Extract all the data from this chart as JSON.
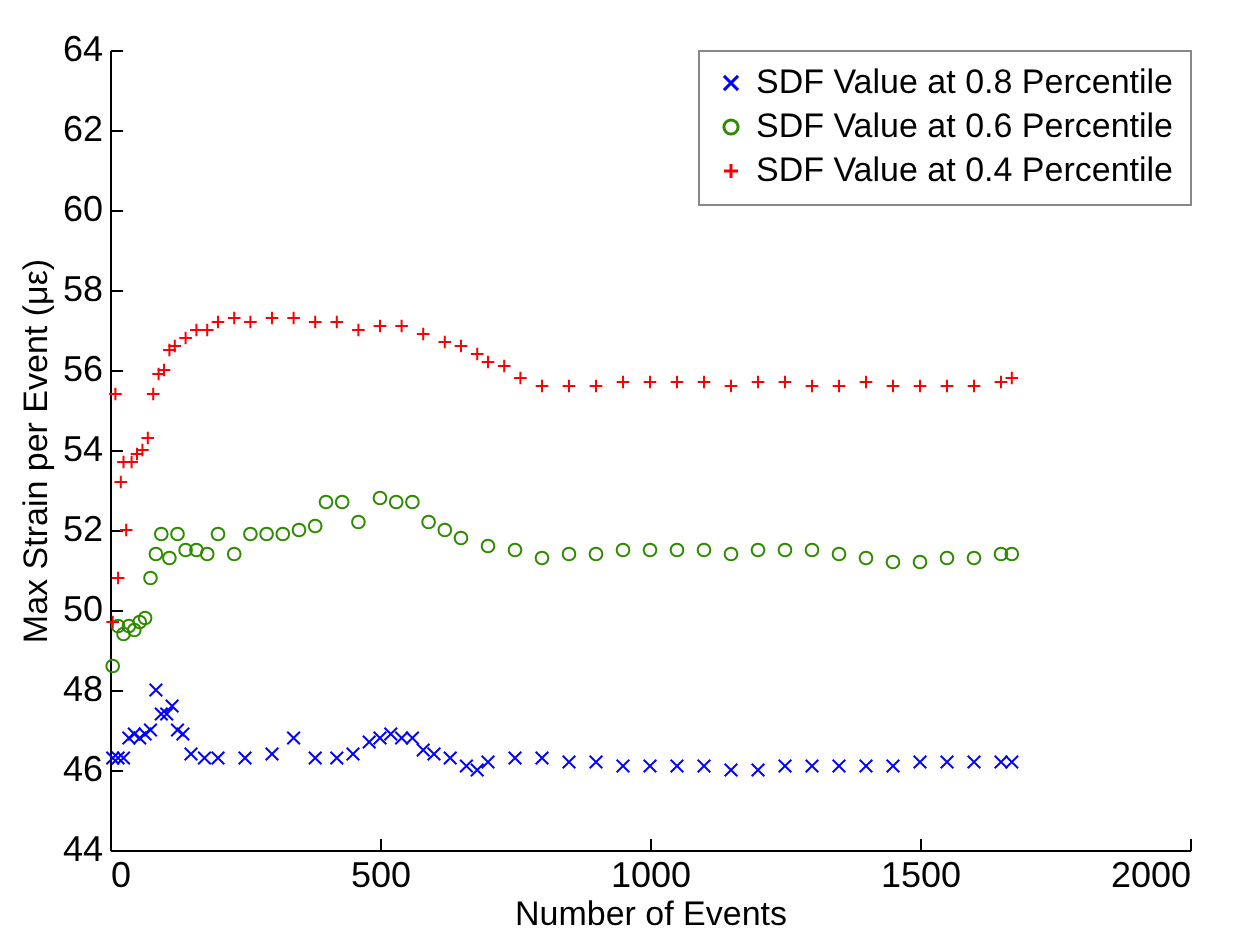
{
  "chart_data": {
    "type": "scatter",
    "xlabel": "Number of Events",
    "ylabel": "Max Strain per Event (με)",
    "xlim": [
      0,
      2000
    ],
    "xticks": [
      0,
      500,
      1000,
      1500,
      2000
    ],
    "ylim": [
      44,
      64
    ],
    "yticks": [
      44,
      46,
      48,
      50,
      52,
      54,
      56,
      58,
      60,
      62,
      64
    ],
    "grid": false,
    "legend": "top right",
    "series": [
      {
        "name": "SDF Value at 0.8 Percentile",
        "color": "#0000ff",
        "marker": "x",
        "x": [
          5,
          15,
          25,
          35,
          45,
          55,
          65,
          75,
          85,
          95,
          105,
          115,
          125,
          135,
          150,
          175,
          200,
          250,
          300,
          340,
          380,
          420,
          450,
          480,
          500,
          520,
          540,
          560,
          580,
          600,
          630,
          660,
          680,
          700,
          750,
          800,
          850,
          900,
          950,
          1000,
          1050,
          1100,
          1150,
          1200,
          1250,
          1300,
          1350,
          1400,
          1450,
          1500,
          1550,
          1600,
          1650,
          1670
        ],
        "values": [
          46.3,
          46.3,
          46.3,
          46.8,
          46.9,
          46.8,
          46.9,
          47.0,
          48.0,
          47.4,
          47.4,
          47.6,
          47.0,
          46.9,
          46.4,
          46.3,
          46.3,
          46.3,
          46.4,
          46.8,
          46.3,
          46.3,
          46.4,
          46.7,
          46.8,
          46.9,
          46.8,
          46.8,
          46.5,
          46.4,
          46.3,
          46.1,
          46.0,
          46.2,
          46.3,
          46.3,
          46.2,
          46.2,
          46.1,
          46.1,
          46.1,
          46.1,
          46.0,
          46.0,
          46.1,
          46.1,
          46.1,
          46.1,
          46.1,
          46.2,
          46.2,
          46.2,
          46.2,
          46.2
        ]
      },
      {
        "name": "SDF Value at 0.6 Percentile",
        "color": "#2e8b00",
        "marker": "circle",
        "x": [
          5,
          15,
          25,
          35,
          45,
          55,
          65,
          75,
          85,
          95,
          110,
          125,
          140,
          160,
          180,
          200,
          230,
          260,
          290,
          320,
          350,
          380,
          400,
          430,
          460,
          500,
          530,
          560,
          590,
          620,
          650,
          700,
          750,
          800,
          850,
          900,
          950,
          1000,
          1050,
          1100,
          1150,
          1200,
          1250,
          1300,
          1350,
          1400,
          1450,
          1500,
          1550,
          1600,
          1650,
          1670
        ],
        "values": [
          48.6,
          49.6,
          49.4,
          49.6,
          49.5,
          49.7,
          49.8,
          50.8,
          51.4,
          51.9,
          51.3,
          51.9,
          51.5,
          51.5,
          51.4,
          51.9,
          51.4,
          51.9,
          51.9,
          51.9,
          52.0,
          52.1,
          52.7,
          52.7,
          52.2,
          52.8,
          52.7,
          52.7,
          52.2,
          52.0,
          51.8,
          51.6,
          51.5,
          51.3,
          51.4,
          51.4,
          51.5,
          51.5,
          51.5,
          51.5,
          51.4,
          51.5,
          51.5,
          51.5,
          51.4,
          51.3,
          51.2,
          51.2,
          51.3,
          51.3,
          51.4,
          51.4
        ]
      },
      {
        "name": "SDF Value at 0.4 Percentile",
        "color": "#ff0000",
        "marker": "cross",
        "x": [
          5,
          10,
          15,
          20,
          25,
          30,
          40,
          50,
          60,
          70,
          80,
          90,
          100,
          110,
          120,
          140,
          160,
          180,
          200,
          230,
          260,
          300,
          340,
          380,
          420,
          460,
          500,
          540,
          580,
          620,
          650,
          680,
          700,
          730,
          760,
          800,
          850,
          900,
          950,
          1000,
          1050,
          1100,
          1150,
          1200,
          1250,
          1300,
          1350,
          1400,
          1450,
          1500,
          1550,
          1600,
          1650,
          1670
        ],
        "values": [
          49.7,
          55.4,
          50.8,
          53.2,
          53.7,
          52.0,
          53.7,
          53.9,
          54.0,
          54.3,
          55.4,
          55.9,
          56.0,
          56.5,
          56.6,
          56.8,
          57.0,
          57.0,
          57.2,
          57.3,
          57.2,
          57.3,
          57.3,
          57.2,
          57.2,
          57.0,
          57.1,
          57.1,
          56.9,
          56.7,
          56.6,
          56.4,
          56.2,
          56.1,
          55.8,
          55.6,
          55.6,
          55.6,
          55.7,
          55.7,
          55.7,
          55.7,
          55.6,
          55.7,
          55.7,
          55.6,
          55.6,
          55.7,
          55.6,
          55.6,
          55.6,
          55.6,
          55.7,
          55.8
        ]
      }
    ]
  }
}
